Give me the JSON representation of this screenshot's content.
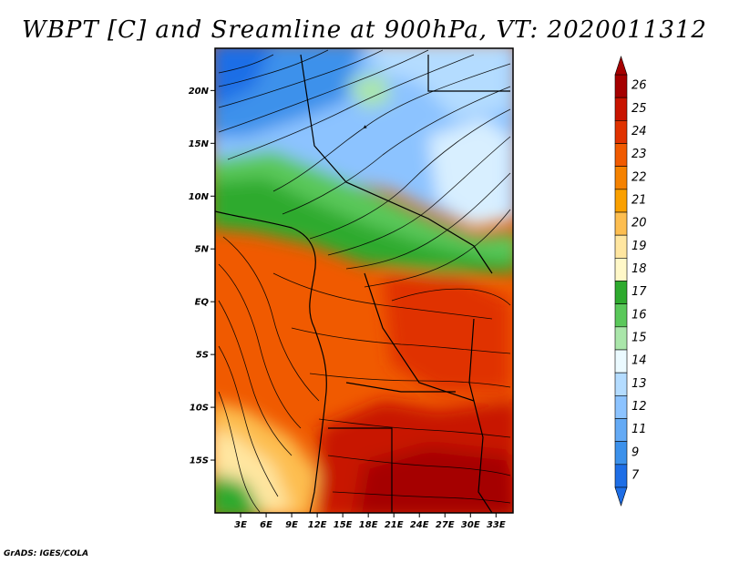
{
  "title": "WBPT [C] and Sreamline at 900hPa, VT: 2020011312",
  "credit": "GrADS: IGES/COLA",
  "map": {
    "lon_range": [
      0,
      35
    ],
    "lat_range": [
      -20,
      24
    ],
    "lat_ticks": [
      {
        "value": 20,
        "label": "20N"
      },
      {
        "value": 15,
        "label": "15N"
      },
      {
        "value": 10,
        "label": "10N"
      },
      {
        "value": 5,
        "label": "5N"
      },
      {
        "value": 0,
        "label": "EQ"
      },
      {
        "value": -5,
        "label": "5S"
      },
      {
        "value": -10,
        "label": "10S"
      },
      {
        "value": -15,
        "label": "15S"
      }
    ],
    "lon_ticks": [
      {
        "value": 3,
        "label": "3E"
      },
      {
        "value": 6,
        "label": "6E"
      },
      {
        "value": 9,
        "label": "9E"
      },
      {
        "value": 12,
        "label": "12E"
      },
      {
        "value": 15,
        "label": "15E"
      },
      {
        "value": 18,
        "label": "18E"
      },
      {
        "value": 21,
        "label": "21E"
      },
      {
        "value": 24,
        "label": "24E"
      },
      {
        "value": 27,
        "label": "27E"
      },
      {
        "value": 30,
        "label": "30E"
      },
      {
        "value": 33,
        "label": "33E"
      }
    ]
  },
  "colorbar": {
    "levels": [
      {
        "label": "26",
        "color": "#a50000"
      },
      {
        "label": "25",
        "color": "#c81400"
      },
      {
        "label": "24",
        "color": "#e03200"
      },
      {
        "label": "23",
        "color": "#f05a00"
      },
      {
        "label": "22",
        "color": "#f58200"
      },
      {
        "label": "21",
        "color": "#faa000"
      },
      {
        "label": "20",
        "color": "#fdbe50"
      },
      {
        "label": "19",
        "color": "#ffe6a0"
      },
      {
        "label": "18",
        "color": "#fff8c8"
      },
      {
        "label": "17",
        "color": "#2eaa2e"
      },
      {
        "label": "16",
        "color": "#5ac85a"
      },
      {
        "label": "15",
        "color": "#aae6aa"
      },
      {
        "label": "14",
        "color": "#ebfaff"
      },
      {
        "label": "13",
        "color": "#b4dcff"
      },
      {
        "label": "12",
        "color": "#8cc3ff"
      },
      {
        "label": "11",
        "color": "#64aaf5"
      },
      {
        "label": "9",
        "color": "#3c91eb"
      },
      {
        "label": "7",
        "color": "#1e6ee6"
      }
    ]
  }
}
